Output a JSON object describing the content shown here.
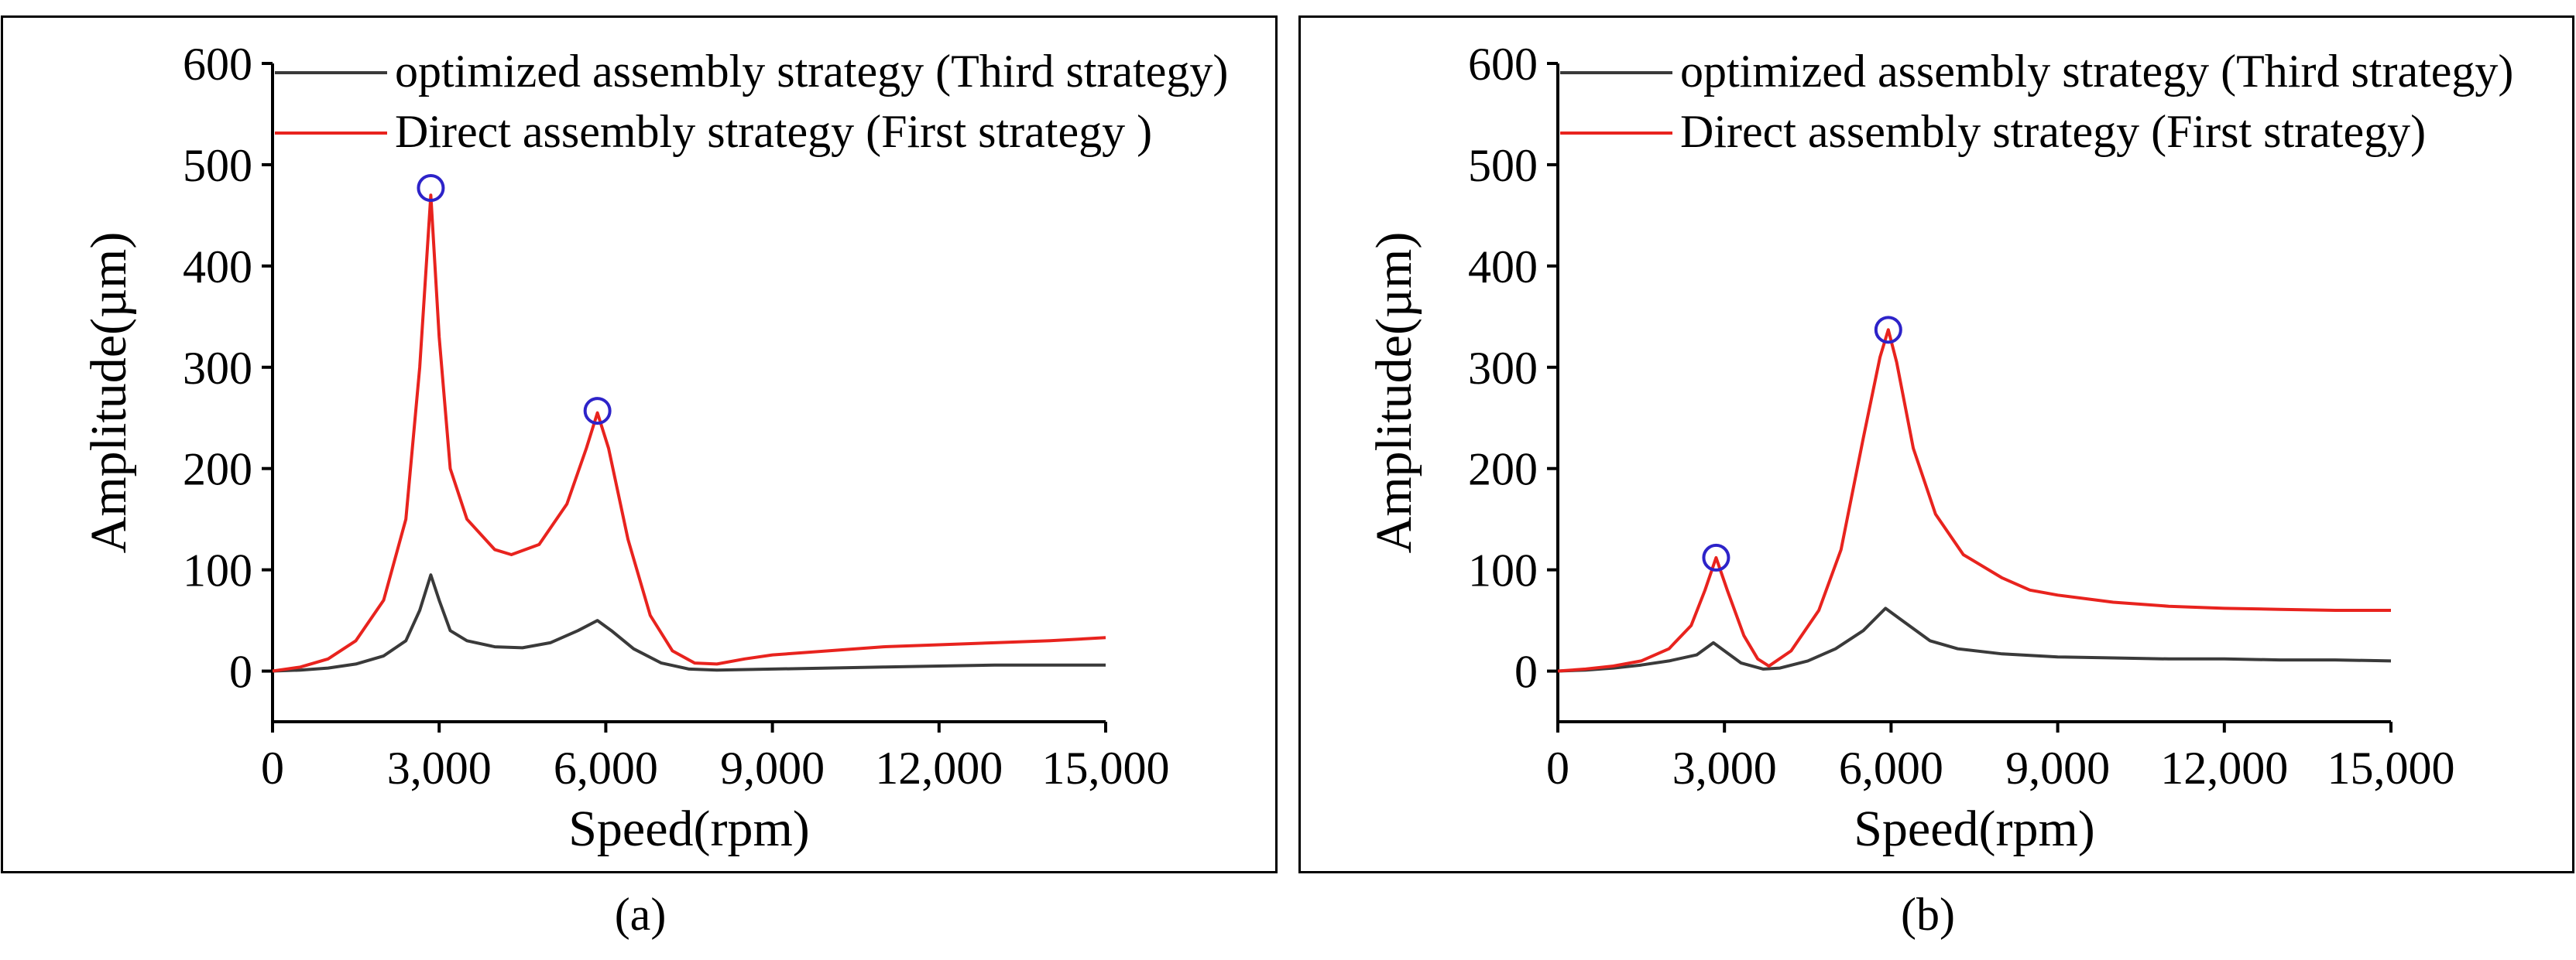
{
  "chart_data": [
    {
      "type": "line",
      "panel_label": "(a)",
      "xlabel": "Speed(rpm)",
      "ylabel": "Amplitude(µm)",
      "xlim": [
        0,
        15000
      ],
      "ylim": [
        -50,
        600
      ],
      "xticks": [
        0,
        3000,
        6000,
        9000,
        12000,
        15000
      ],
      "xtick_labels": [
        "0",
        "3,000",
        "6,000",
        "9,000",
        "12,000",
        "15,000"
      ],
      "yticks": [
        0,
        100,
        200,
        300,
        400,
        500,
        600
      ],
      "ytick_labels": [
        "0",
        "100",
        "200",
        "300",
        "400",
        "500",
        "600"
      ],
      "legend_position": "top-right",
      "series": [
        {
          "name": "optimized assembly strategy (Third strategy)",
          "color": "#3a3a3a",
          "points": [
            [
              0,
              0
            ],
            [
              500,
              1
            ],
            [
              1000,
              3
            ],
            [
              1500,
              7
            ],
            [
              2000,
              15
            ],
            [
              2400,
              30
            ],
            [
              2650,
              60
            ],
            [
              2850,
              95
            ],
            [
              3000,
              70
            ],
            [
              3200,
              40
            ],
            [
              3500,
              30
            ],
            [
              4000,
              24
            ],
            [
              4500,
              23
            ],
            [
              5000,
              28
            ],
            [
              5500,
              40
            ],
            [
              5850,
              50
            ],
            [
              6100,
              40
            ],
            [
              6500,
              22
            ],
            [
              7000,
              8
            ],
            [
              7500,
              2
            ],
            [
              8000,
              1
            ],
            [
              9000,
              2
            ],
            [
              10000,
              3
            ],
            [
              11000,
              4
            ],
            [
              12000,
              5
            ],
            [
              13000,
              6
            ],
            [
              14000,
              6
            ],
            [
              15000,
              6
            ]
          ]
        },
        {
          "name": "Direct assembly strategy (First strategy )",
          "color": "#e8231e",
          "points": [
            [
              0,
              0
            ],
            [
              500,
              4
            ],
            [
              1000,
              12
            ],
            [
              1500,
              30
            ],
            [
              2000,
              70
            ],
            [
              2400,
              150
            ],
            [
              2650,
              300
            ],
            [
              2850,
              470
            ],
            [
              3000,
              330
            ],
            [
              3200,
              200
            ],
            [
              3500,
              150
            ],
            [
              4000,
              120
            ],
            [
              4300,
              115
            ],
            [
              4800,
              125
            ],
            [
              5300,
              165
            ],
            [
              5650,
              220
            ],
            [
              5850,
              255
            ],
            [
              6050,
              220
            ],
            [
              6400,
              130
            ],
            [
              6800,
              55
            ],
            [
              7200,
              20
            ],
            [
              7600,
              8
            ],
            [
              8000,
              7
            ],
            [
              8500,
              12
            ],
            [
              9000,
              16
            ],
            [
              10000,
              20
            ],
            [
              11000,
              24
            ],
            [
              12000,
              26
            ],
            [
              13000,
              28
            ],
            [
              14000,
              30
            ],
            [
              15000,
              33
            ]
          ]
        }
      ],
      "annotations": [
        {
          "type": "circle",
          "x": 2850,
          "y": 477
        },
        {
          "type": "circle",
          "x": 5850,
          "y": 257
        }
      ]
    },
    {
      "type": "line",
      "panel_label": "(b)",
      "xlabel": "Speed(rpm)",
      "ylabel": "Amplitude(µm)",
      "xlim": [
        0,
        15000
      ],
      "ylim": [
        -50,
        600
      ],
      "xticks": [
        0,
        3000,
        6000,
        9000,
        12000,
        15000
      ],
      "xtick_labels": [
        "0",
        "3,000",
        "6,000",
        "9,000",
        "12,000",
        "15,000"
      ],
      "yticks": [
        0,
        100,
        200,
        300,
        400,
        500,
        600
      ],
      "ytick_labels": [
        "0",
        "100",
        "200",
        "300",
        "400",
        "500",
        "600"
      ],
      "legend_position": "top-right",
      "series": [
        {
          "name": "optimized assembly strategy (Third strategy)",
          "color": "#3a3a3a",
          "points": [
            [
              0,
              0
            ],
            [
              500,
              1
            ],
            [
              1000,
              3
            ],
            [
              1500,
              6
            ],
            [
              2000,
              10
            ],
            [
              2500,
              16
            ],
            [
              2800,
              28
            ],
            [
              3000,
              20
            ],
            [
              3300,
              8
            ],
            [
              3700,
              2
            ],
            [
              4000,
              3
            ],
            [
              4500,
              10
            ],
            [
              5000,
              22
            ],
            [
              5500,
              40
            ],
            [
              5900,
              62
            ],
            [
              6200,
              50
            ],
            [
              6700,
              30
            ],
            [
              7200,
              22
            ],
            [
              8000,
              17
            ],
            [
              9000,
              14
            ],
            [
              10000,
              13
            ],
            [
              11000,
              12
            ],
            [
              12000,
              12
            ],
            [
              13000,
              11
            ],
            [
              14000,
              11
            ],
            [
              15000,
              10
            ]
          ]
        },
        {
          "name": "Direct assembly strategy (First strategy)",
          "color": "#e8231e",
          "points": [
            [
              0,
              0
            ],
            [
              500,
              2
            ],
            [
              1000,
              5
            ],
            [
              1500,
              10
            ],
            [
              2000,
              22
            ],
            [
              2400,
              45
            ],
            [
              2650,
              80
            ],
            [
              2850,
              112
            ],
            [
              3050,
              80
            ],
            [
              3350,
              35
            ],
            [
              3600,
              12
            ],
            [
              3800,
              5
            ],
            [
              4200,
              20
            ],
            [
              4700,
              60
            ],
            [
              5100,
              120
            ],
            [
              5500,
              230
            ],
            [
              5800,
              310
            ],
            [
              5950,
              337
            ],
            [
              6100,
              305
            ],
            [
              6400,
              220
            ],
            [
              6800,
              155
            ],
            [
              7300,
              115
            ],
            [
              8000,
              92
            ],
            [
              8500,
              80
            ],
            [
              9000,
              75
            ],
            [
              10000,
              68
            ],
            [
              11000,
              64
            ],
            [
              12000,
              62
            ],
            [
              13000,
              61
            ],
            [
              14000,
              60
            ],
            [
              15000,
              60
            ]
          ]
        }
      ],
      "annotations": [
        {
          "type": "circle",
          "x": 2850,
          "y": 112
        },
        {
          "type": "circle",
          "x": 5950,
          "y": 337
        }
      ]
    }
  ]
}
